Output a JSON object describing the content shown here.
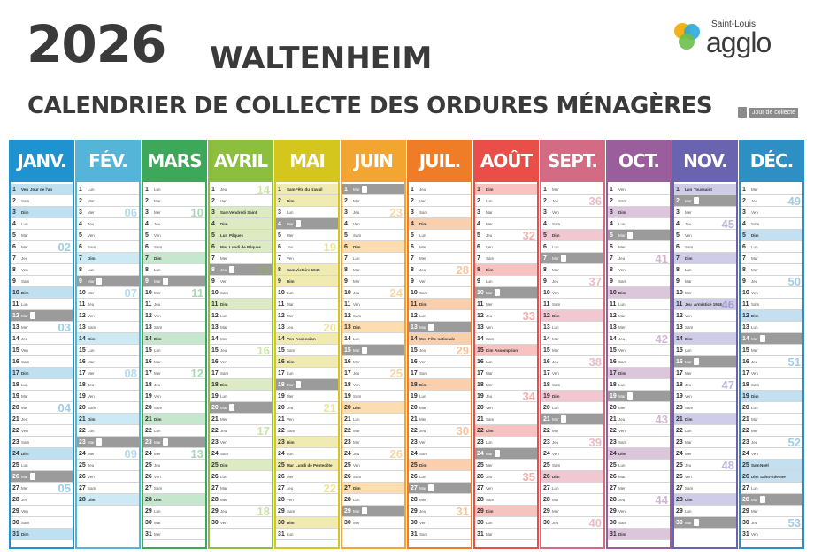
{
  "header": {
    "year": "2026",
    "town": "WALTENHEIM",
    "subtitle": "CALENDRIER DE COLLECTE DES ORDURES MÉNAGÈRES"
  },
  "logo": {
    "top": "Saint-Louis",
    "main": "agglo"
  },
  "legend": {
    "label": "Jour de collecte",
    "icon": "trash-bin-icon"
  },
  "colors": {
    "collect_row": "#9b9b9b"
  },
  "months": [
    {
      "name": "JANV.",
      "color": "#1f93cf",
      "tint": "#bfe0f1",
      "start": 4,
      "days": 31,
      "collect": [
        12,
        26
      ],
      "weeks": [
        "02",
        "03",
        "04",
        "05"
      ],
      "week_rows": [
        6,
        13,
        20,
        27
      ],
      "notes": {
        "1": "Jour de l'an"
      }
    },
    {
      "name": "FÉV.",
      "color": "#54b5d8",
      "tint": "#cce9f4",
      "start": 0,
      "days": 28,
      "collect": [
        9,
        23
      ],
      "weeks": [
        "06",
        "07",
        "08",
        "09"
      ],
      "week_rows": [
        3,
        10,
        17,
        24
      ],
      "notes": {}
    },
    {
      "name": "MARS",
      "color": "#3ea85a",
      "tint": "#c6e6cd",
      "start": 0,
      "days": 31,
      "collect": [
        9,
        23
      ],
      "weeks": [
        "10",
        "11",
        "12",
        "13"
      ],
      "week_rows": [
        3,
        10,
        17,
        24
      ],
      "notes": {}
    },
    {
      "name": "AVRIL",
      "color": "#8dbf3f",
      "tint": "#dcebc3",
      "start": 3,
      "days": 30,
      "collect": [
        8,
        20
      ],
      "weeks": [
        "14",
        "15",
        "16",
        "17",
        "18"
      ],
      "week_rows": [
        1,
        8,
        15,
        22,
        29
      ],
      "notes": {
        "3": "Vendredi Saint",
        "5": "Pâques",
        "6": "Lundi de Pâques"
      }
    },
    {
      "name": "MAI",
      "color": "#d5c61e",
      "tint": "#f0ebb0",
      "start": 5,
      "days": 31,
      "collect": [
        4,
        18
      ],
      "weeks": [
        "19",
        "20",
        "21",
        "22"
      ],
      "week_rows": [
        6,
        13,
        20,
        27
      ],
      "notes": {
        "1": "Fête du travail",
        "8": "Victoire 1945",
        "14": "Ascension",
        "25": "Lundi de Pentecôte"
      }
    },
    {
      "name": "JUIN",
      "color": "#f3a531",
      "tint": "#fbddb0",
      "start": 1,
      "days": 30,
      "collect": [
        1,
        15,
        29
      ],
      "weeks": [
        "23",
        "24",
        "25",
        "26",
        "27"
      ],
      "week_rows": [
        3,
        10,
        17,
        24,
        31
      ],
      "notes": {}
    },
    {
      "name": "JUIL.",
      "color": "#ef7d28",
      "tint": "#f9cfae",
      "start": 3,
      "days": 31,
      "collect": [
        13,
        27
      ],
      "weeks": [
        "28",
        "29",
        "30",
        "31"
      ],
      "week_rows": [
        8,
        15,
        22,
        29
      ],
      "notes": {
        "14": "Fête nationale"
      }
    },
    {
      "name": "AOÛT",
      "color": "#e94e49",
      "tint": "#f7c2bf",
      "start": 6,
      "days": 31,
      "collect": [
        10,
        24
      ],
      "weeks": [
        "32",
        "33",
        "34",
        "35"
      ],
      "week_rows": [
        5,
        12,
        19,
        26
      ],
      "notes": {
        "15": "Assomption"
      }
    },
    {
      "name": "SEPT.",
      "color": "#d46b85",
      "tint": "#f1c8d2",
      "start": 2,
      "days": 30,
      "collect": [
        7,
        21
      ],
      "weeks": [
        "36",
        "37",
        "38",
        "39",
        "40"
      ],
      "week_rows": [
        2,
        9,
        16,
        23,
        30
      ],
      "notes": {}
    },
    {
      "name": "OCT.",
      "color": "#9b5e9c",
      "tint": "#dcc6dc",
      "start": 4,
      "days": 31,
      "collect": [
        5,
        19
      ],
      "weeks": [
        "41",
        "42",
        "43",
        "44"
      ],
      "week_rows": [
        7,
        14,
        21,
        28
      ],
      "notes": {}
    },
    {
      "name": "NOV.",
      "color": "#6a64b0",
      "tint": "#cfcce8",
      "start": 0,
      "days": 30,
      "collect": [
        2,
        16,
        30
      ],
      "weeks": [
        "45",
        "46",
        "47",
        "48"
      ],
      "week_rows": [
        4,
        11,
        18,
        25
      ],
      "notes": {
        "1": "Toussaint",
        "11": "Armistice 1918"
      }
    },
    {
      "name": "DÉC.",
      "color": "#2e8fc4",
      "tint": "#c3dff0",
      "start": 2,
      "days": 31,
      "collect": [
        14,
        28
      ],
      "weeks": [
        "49",
        "50",
        "51",
        "52",
        "53"
      ],
      "week_rows": [
        2,
        9,
        16,
        23,
        30
      ],
      "notes": {
        "25": "Noël",
        "26": "Saint-Etienne"
      }
    }
  ],
  "weekdays": [
    "Lun",
    "Mar",
    "Mer",
    "Jeu",
    "Ven",
    "Sam",
    "Dim"
  ]
}
